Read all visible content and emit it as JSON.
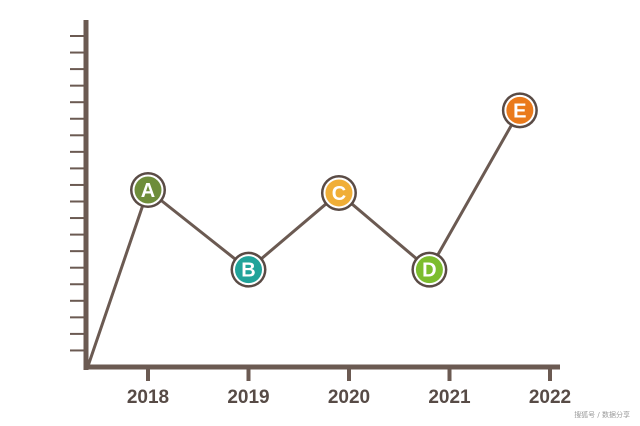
{
  "chart_data": {
    "type": "line",
    "title": "",
    "xlabel": "",
    "ylabel": "",
    "x_tick_labels": [
      "2018",
      "2019",
      "2020",
      "2021",
      "2022"
    ],
    "ylim": [
      0,
      10
    ],
    "y_minor_ticks": 20,
    "grid": false,
    "legend": "none",
    "series": [
      {
        "points": [
          {
            "x": 2017.4,
            "y": 0
          },
          {
            "x": 2018.0,
            "y": 6.0,
            "label": "A",
            "color": "#6e8d3a"
          },
          {
            "x": 2019.0,
            "y": 3.3,
            "label": "B",
            "color": "#21a39a"
          },
          {
            "x": 2019.9,
            "y": 5.9,
            "label": "C",
            "color": "#f0ae37"
          },
          {
            "x": 2020.8,
            "y": 3.3,
            "label": "D",
            "color": "#7cbd2e"
          },
          {
            "x": 2021.7,
            "y": 8.7,
            "label": "E",
            "color": "#ea7a1b"
          }
        ]
      }
    ],
    "colors": {
      "axis": "#6b5a52",
      "line": "#6b5a52",
      "marker_ring": "#5a4b45",
      "tick_label": "#574b46"
    }
  },
  "watermark": "搜狐号 / 数据分享"
}
